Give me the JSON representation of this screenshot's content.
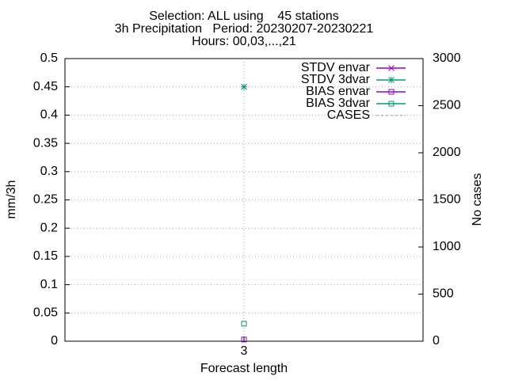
{
  "chart_data": {
    "type": "line",
    "title": [
      "Selection: ALL using    45 stations",
      "3h Precipitation   Period: 20230207-20230221",
      "Hours: 00,03,...,21"
    ],
    "x_label": "Forecast length",
    "y_label": "mm/3h",
    "y2_label": "No cases",
    "x": [
      3
    ],
    "xlim": [
      2,
      4
    ],
    "xticks": [
      3
    ],
    "ylim": [
      0,
      0.5
    ],
    "yticks": [
      0,
      0.05,
      0.1,
      0.15,
      0.2,
      0.25,
      0.3,
      0.35,
      0.4,
      0.45,
      0.5
    ],
    "y2lim": [
      0,
      3000
    ],
    "y2ticks": [
      0,
      500,
      1000,
      1500,
      2000,
      2500,
      3000
    ],
    "grid": true,
    "legend": "top-right",
    "series": [
      {
        "name": "STDV envar",
        "color": "#9400d3",
        "marker": "x",
        "values": [
          0.45
        ]
      },
      {
        "name": "STDV 3dvar",
        "color": "#009e73",
        "marker": "star",
        "values": [
          0.45
        ]
      },
      {
        "name": "BIAS envar",
        "color": "#9400d3",
        "marker": "square",
        "values": [
          0.003
        ]
      },
      {
        "name": "BIAS 3dvar",
        "color": "#009e73",
        "marker": "square",
        "values": [
          0.031
        ]
      },
      {
        "name": "CASES",
        "color": "#a0a0a0",
        "marker": "none",
        "dashed": true,
        "axis": "y2",
        "values": [
          null
        ]
      }
    ]
  }
}
